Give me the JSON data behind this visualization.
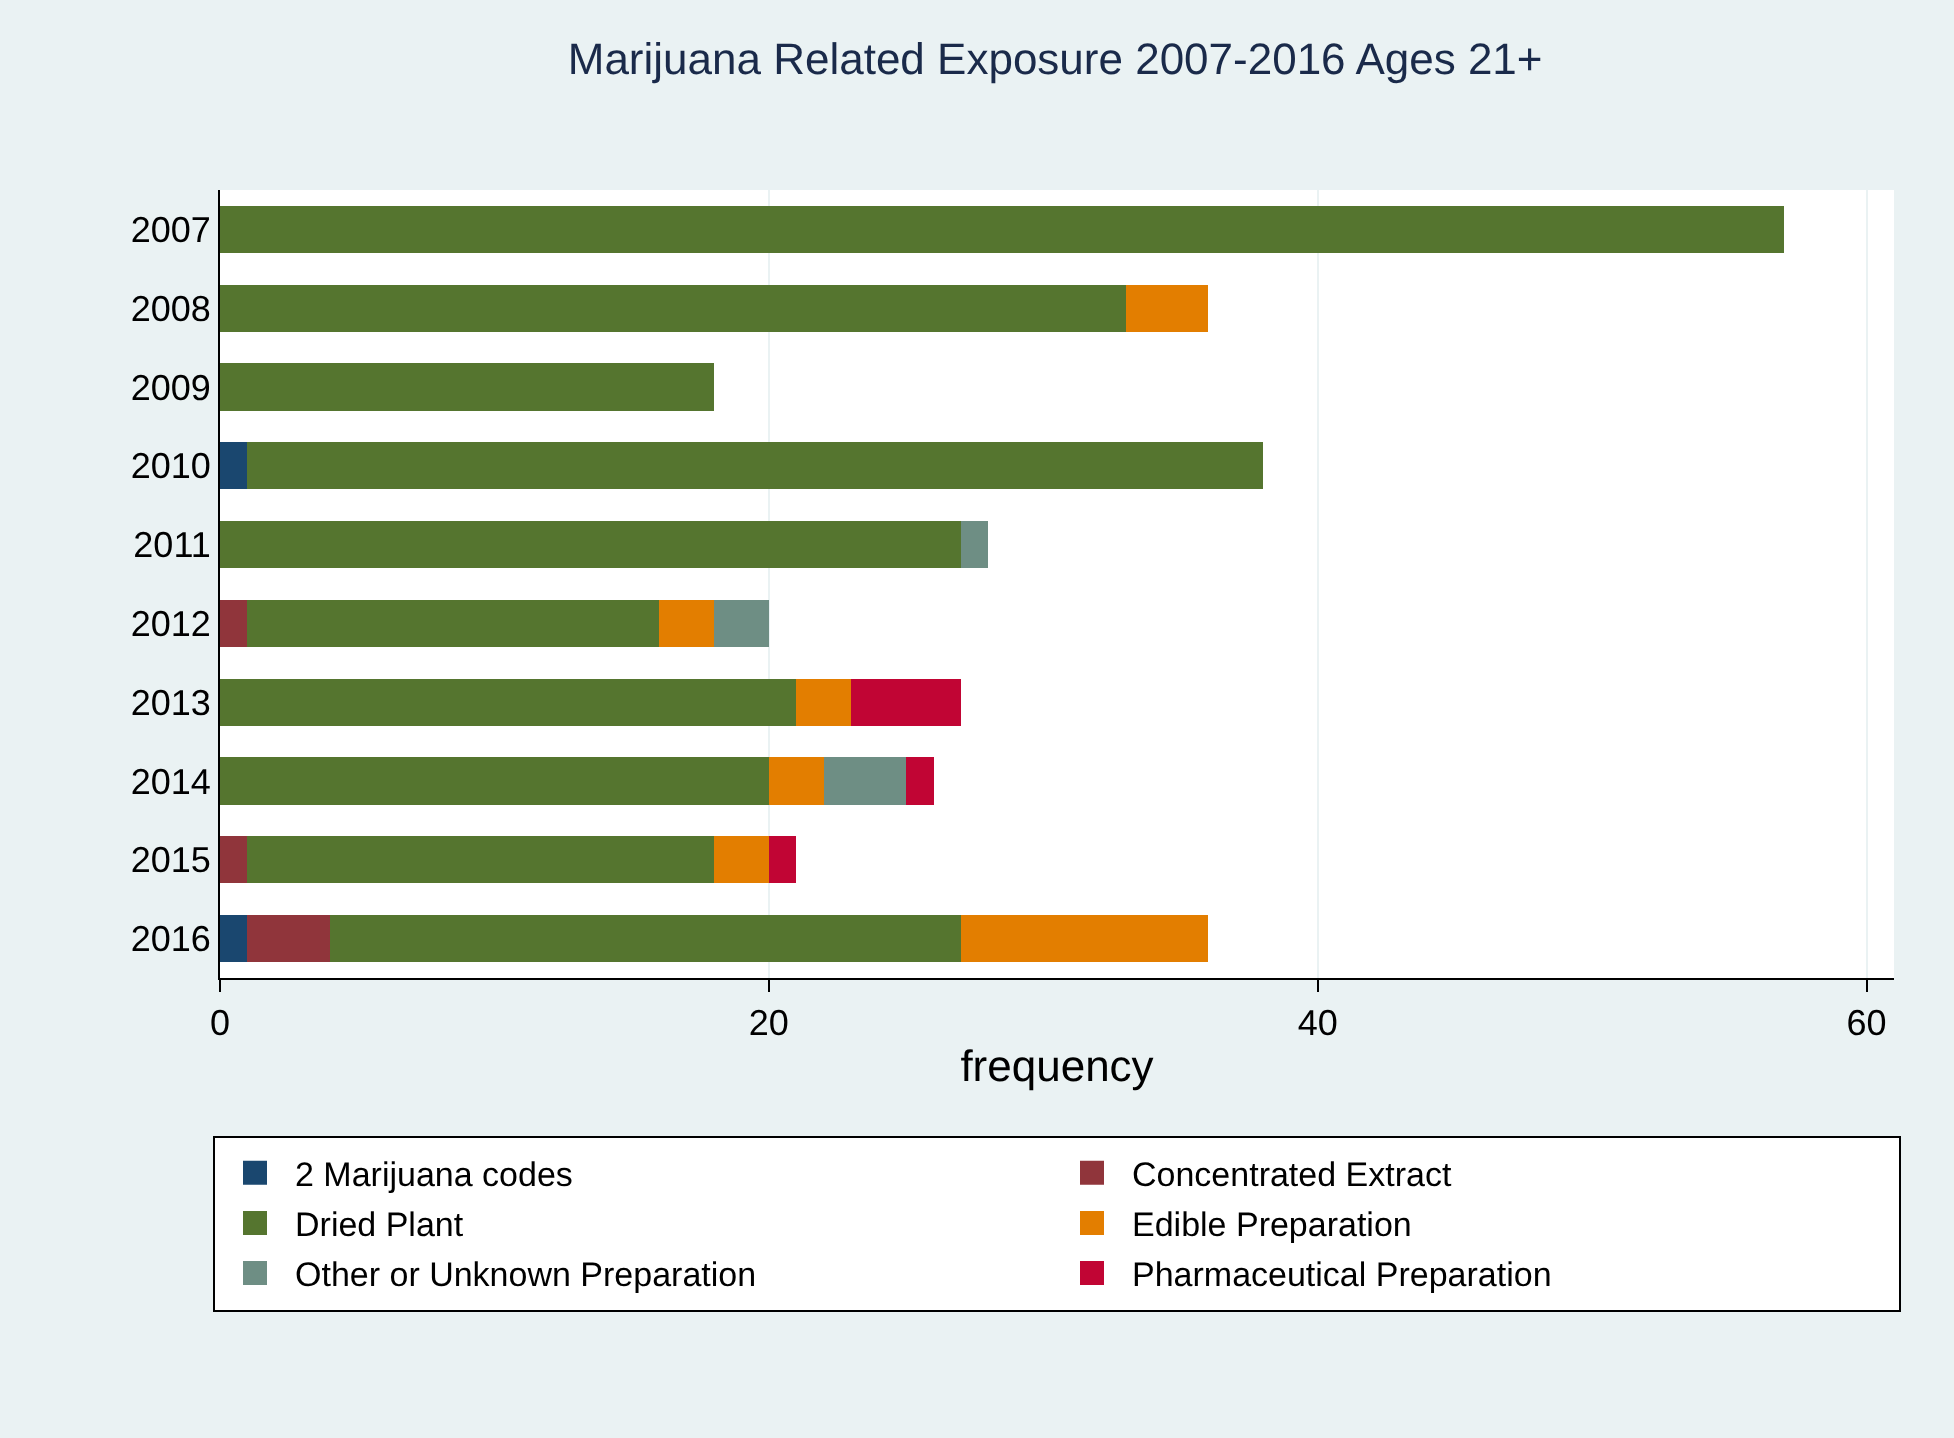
{
  "chart_data": {
    "type": "bar",
    "orientation": "horizontal",
    "stacked": true,
    "title": "Marijuana Related Exposure 2007-2016 Ages 21+",
    "xlabel": "frequency",
    "categories": [
      "2007",
      "2008",
      "2009",
      "2010",
      "2011",
      "2012",
      "2013",
      "2014",
      "2015",
      "2016"
    ],
    "series": [
      {
        "name": "2 Marijuana codes",
        "color": "#1a476f",
        "values": [
          0,
          0,
          0,
          1,
          0,
          0,
          0,
          0,
          0,
          1
        ]
      },
      {
        "name": "Concentrated Extract",
        "color": "#90353b",
        "values": [
          0,
          0,
          0,
          0,
          0,
          1,
          0,
          0,
          1,
          3
        ]
      },
      {
        "name": "Dried Plant",
        "color": "#55752f",
        "values": [
          57,
          33,
          18,
          37,
          27,
          15,
          21,
          20,
          17,
          23
        ]
      },
      {
        "name": "Edible Preparation",
        "color": "#e37e00",
        "values": [
          0,
          3,
          0,
          0,
          0,
          2,
          2,
          2,
          2,
          9
        ]
      },
      {
        "name": "Other or Unknown Preparation",
        "color": "#6e8e84",
        "values": [
          0,
          0,
          0,
          0,
          1,
          2,
          0,
          3,
          0,
          0
        ]
      },
      {
        "name": "Pharmaceutical Preparation",
        "color": "#c10534",
        "values": [
          0,
          0,
          0,
          0,
          0,
          0,
          4,
          1,
          1,
          0
        ]
      }
    ],
    "xlim": [
      0,
      61
    ],
    "xticks": [
      0,
      20,
      40,
      60
    ],
    "grid": "x",
    "legend": "bottom"
  }
}
